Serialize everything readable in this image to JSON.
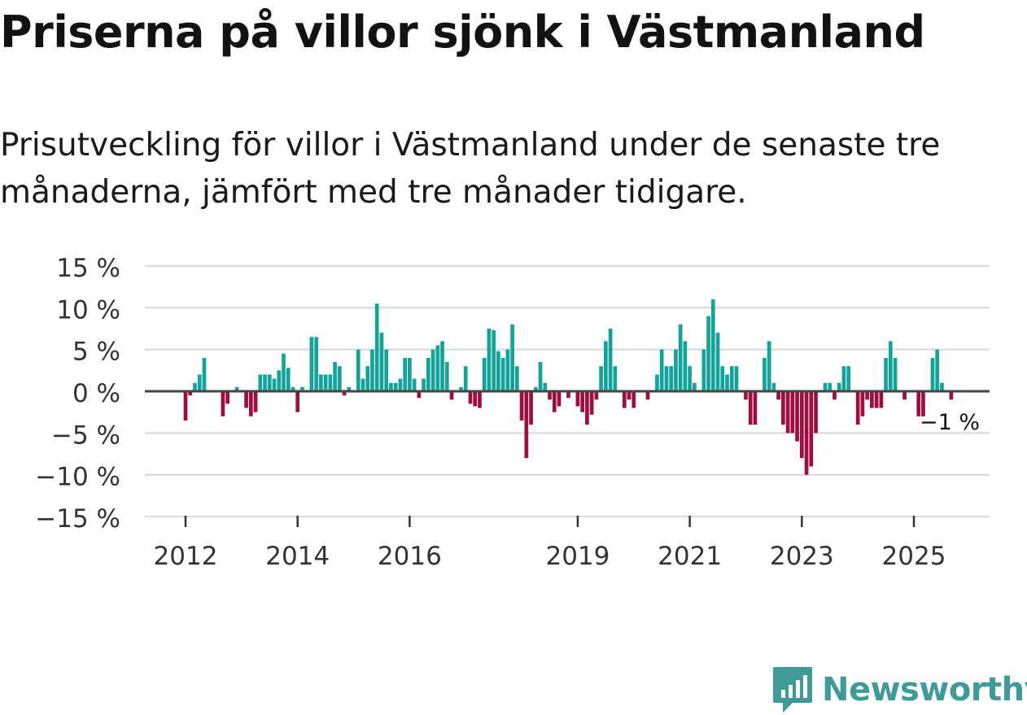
{
  "header": {
    "title": "Priserna på villor sjönk i Västmanland",
    "subtitle": "Prisutveckling för villor i Västmanland under de senaste tre månaderna, jämfört med tre månader tidigare."
  },
  "brand": {
    "name": "Newsworthy",
    "icon": "chat-bar-chart-icon"
  },
  "colors": {
    "positive": "#14a39a",
    "negative": "#9e0e3e",
    "grid": "#dddddd",
    "zero": "#444444",
    "brand": "#3e9b98"
  },
  "chart_data": {
    "type": "bar",
    "title": "Priserna på villor sjönk i Västmanland",
    "xlabel": "",
    "ylabel": "",
    "ylim": [
      -15,
      15
    ],
    "yticks": [
      15,
      10,
      5,
      0,
      -5,
      -10,
      -15
    ],
    "ytick_labels": [
      "15 %",
      "10 %",
      "5 %",
      "0 %",
      "−5 %",
      "−10 %",
      "−15 %"
    ],
    "xticks": [
      {
        "year": 2012,
        "label": "2012"
      },
      {
        "year": 2014,
        "label": "2014"
      },
      {
        "year": 2016,
        "label": "2016"
      },
      {
        "year": 2019,
        "label": "2019"
      },
      {
        "year": 2021,
        "label": "2021"
      },
      {
        "year": 2023,
        "label": "2023"
      },
      {
        "year": 2025,
        "label": "2025"
      }
    ],
    "start": {
      "year": 2011,
      "month": 6
    },
    "values": [
      0,
      0,
      0,
      0,
      0,
      0,
      0,
      -3.5,
      -0.5,
      1,
      2,
      4,
      0,
      0,
      0,
      -3,
      -1.5,
      0,
      0.5,
      0,
      -2,
      -3,
      -2.5,
      2,
      2,
      2,
      1.5,
      2.5,
      4.5,
      2.8,
      0.5,
      -2.5,
      0.5,
      0,
      6.5,
      6.5,
      2,
      2,
      2,
      3.5,
      3,
      -0.5,
      0.5,
      0,
      5,
      1.5,
      3,
      5,
      10.5,
      7,
      5,
      1,
      1,
      1.5,
      4,
      4,
      1.5,
      -0.8,
      1.5,
      4,
      5,
      5.5,
      6,
      3.5,
      -1,
      0,
      0.5,
      3,
      -1.5,
      -1.8,
      -2,
      4,
      7.5,
      7.3,
      4.8,
      4,
      5,
      8,
      3,
      -3.5,
      -8,
      -4,
      0.5,
      3.5,
      1,
      -1,
      -2.5,
      -1.8,
      0,
      -0.8,
      0,
      -1.8,
      -2.5,
      -4,
      -2.8,
      -1,
      3,
      6,
      7.5,
      3,
      0,
      -2,
      -1,
      -2,
      0,
      0,
      -1,
      0,
      2,
      5,
      3,
      3,
      5,
      8,
      6,
      3,
      1,
      0,
      5,
      9,
      11,
      7,
      3,
      2,
      3,
      3,
      0,
      -1,
      -4,
      -4,
      0,
      4,
      6,
      1,
      -1,
      -4,
      -5,
      -5,
      -6,
      -8,
      -10,
      -9,
      -5,
      0,
      1,
      1,
      -1,
      1,
      3,
      3,
      0,
      -4,
      -3,
      -1,
      -2,
      -2,
      -2,
      4,
      6,
      4,
      0,
      -1,
      0,
      0,
      -3,
      -3,
      0,
      4,
      5,
      1,
      0,
      -1
    ],
    "last_label": "−1 %"
  }
}
